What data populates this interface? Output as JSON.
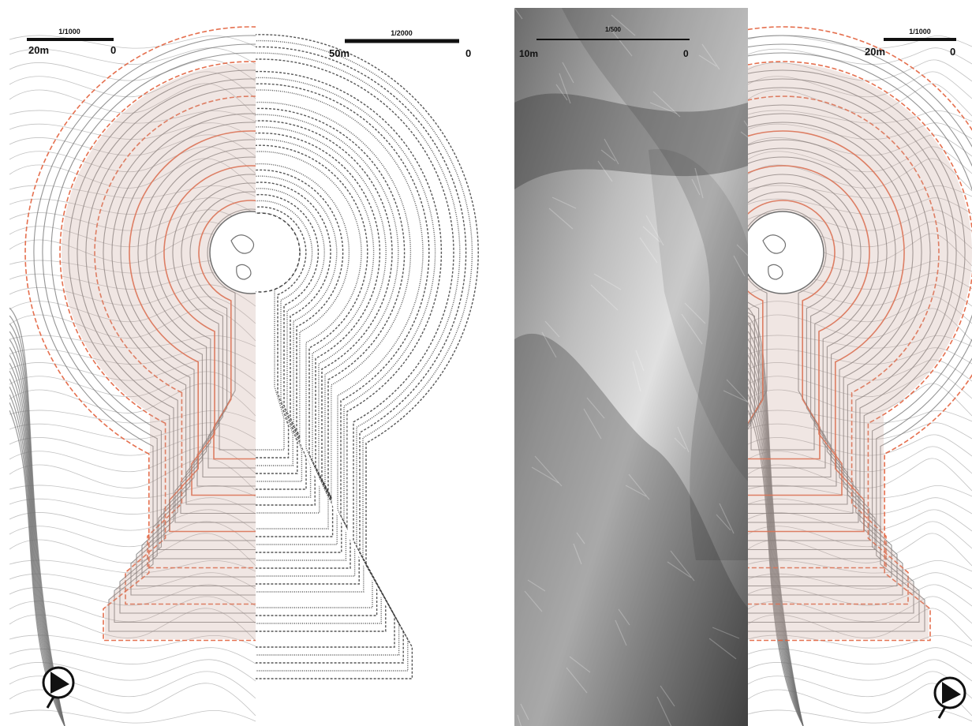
{
  "panels": [
    {
      "id": "survey-comparison",
      "scales": [
        {
          "ratio": "1/1000",
          "left_label": "20m",
          "right_label": "0"
        },
        {
          "ratio": "1/2000",
          "left_label": "50m",
          "right_label": "0"
        }
      ]
    },
    {
      "id": "relief-comparison",
      "scales": [
        {
          "ratio": "1/500",
          "left_label": "10m",
          "right_label": "0"
        },
        {
          "ratio": "1/1000",
          "left_label": "20m",
          "right_label": "0"
        }
      ]
    }
  ],
  "colors": {
    "contour": "#707070",
    "contour_light": "#9a9a9a",
    "mound_fill": "#c9a59a",
    "red_line": "#e2603c",
    "relief_dark": "#5c5c5c",
    "relief_light": "#d8d8d8"
  },
  "icons": [
    "north-arrow-icon"
  ]
}
